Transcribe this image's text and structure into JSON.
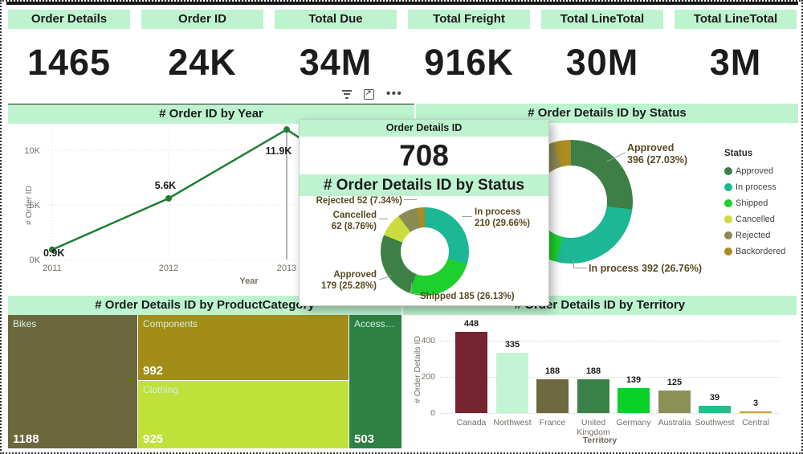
{
  "colors": {
    "mint": "#bdf3cf",
    "line": "#1e7e34",
    "axis_text": "#756e66",
    "status": {
      "Approved": "#3d7f46",
      "In process": "#1cb795",
      "Shipped": "#1ed02e",
      "Cancelled": "#cbdc3e",
      "Rejected": "#8a8a55",
      "Backordered": "#ab8c20"
    }
  },
  "kpi_cards": [
    {
      "label": "Order Details",
      "value": "1465"
    },
    {
      "label": "Order ID",
      "value": "24K"
    },
    {
      "label": "Total Due",
      "value": "34M"
    },
    {
      "label": "Total Freight",
      "value": "916K"
    },
    {
      "label": "Total LineTotal",
      "value": "30M"
    },
    {
      "label": "Total LineTotal",
      "value": "3M"
    }
  ],
  "visual_header_icons": [
    "filter",
    "focus-mode",
    "more-options"
  ],
  "line_chart": {
    "type": "line",
    "title": "# Order ID by Year",
    "xlabel": "Year",
    "ylabel": "# Order ID",
    "x_ticks": [
      "2011",
      "2012",
      "2013"
    ],
    "y_ticks": [
      {
        "label": "0K",
        "value": 0
      },
      {
        "label": "5K",
        "value": 5000
      },
      {
        "label": "10K",
        "value": 10000
      }
    ],
    "points": [
      {
        "x": "2011",
        "value": 900,
        "label": "0.9K"
      },
      {
        "x": "2012",
        "value": 5600,
        "label": "5.6K"
      },
      {
        "x": "2013",
        "value": 11900,
        "label": "11.9K"
      }
    ],
    "trailing_segment": {
      "note": "line continues toward 2014 behind tooltip card",
      "est_value": 5000
    }
  },
  "donut_main": {
    "type": "pie",
    "title": "# Order Details ID by Status",
    "legend_title": "Status",
    "legend": [
      "Approved",
      "In process",
      "Shipped",
      "Cancelled",
      "Rejected",
      "Backordered"
    ],
    "slices": [
      {
        "label": "Approved",
        "value": 396,
        "pct": "27.03%",
        "frac": 0.2703
      },
      {
        "label": "In process",
        "value": 392,
        "pct": "26.76%",
        "frac": 0.2676
      },
      {
        "label": "Shipped",
        "value": null,
        "pct": null,
        "frac": 0.255
      },
      {
        "label": "Cancelled",
        "value": null,
        "pct": null,
        "frac": 0.088
      },
      {
        "label": "Rejected",
        "value": null,
        "pct": null,
        "frac": 0.075
      },
      {
        "label": "Backordered",
        "value": null,
        "pct": null,
        "frac": 0.0441
      }
    ],
    "callout_approved": {
      "line1": "Approved",
      "line2": "396 (27.03%)"
    },
    "callout_inprocess": "In process 392 (26.76%)"
  },
  "popup": {
    "header": "Order Details ID",
    "value": "708",
    "section_title": "# Order Details ID by Status",
    "donut": {
      "type": "pie",
      "slices": [
        {
          "label": "In process",
          "value": 210,
          "pct": "29.66%",
          "frac": 0.2966
        },
        {
          "label": "Shipped",
          "value": 185,
          "pct": "26.13%",
          "frac": 0.2613
        },
        {
          "label": "Approved",
          "value": 179,
          "pct": "25.28%",
          "frac": 0.2528
        },
        {
          "label": "Cancelled",
          "value": 62,
          "pct": "8.76%",
          "frac": 0.0876
        },
        {
          "label": "Rejected",
          "value": 52,
          "pct": "7.34%",
          "frac": 0.0734
        },
        {
          "label": "Backordered",
          "value": null,
          "pct": null,
          "frac": 0.0283
        }
      ]
    },
    "callout_rejected": "Rejected 52 (7.34%)",
    "callout_cancelled": {
      "line1": "Cancelled",
      "line2": "62 (8.76%)"
    },
    "callout_inprocess": {
      "line1": "In process",
      "line2": "210 (29.66%)"
    },
    "callout_approved": {
      "line1": "Approved",
      "line2": "179 (25.28%)"
    },
    "callout_shipped": "Shipped 185 (26.13%)"
  },
  "treemap": {
    "type": "treemap",
    "title": "# Order Details ID by ProductCategory",
    "tiles": [
      {
        "label": "Bikes",
        "value": "1188",
        "color": "#6c683e"
      },
      {
        "label": "Components",
        "value": "992",
        "color": "#a28d18"
      },
      {
        "label": "Clothing",
        "value": "925",
        "color": "#bfe13a"
      },
      {
        "label": "Accessori…",
        "value": "503",
        "color": "#2f8044"
      }
    ]
  },
  "bar_chart": {
    "type": "bar",
    "title": "# Order Details ID by Territory",
    "xlabel": "Territory",
    "ylabel": "# Order Details ID",
    "y_ticks": [
      {
        "label": "0",
        "value": 0
      },
      {
        "label": "200",
        "value": 200
      },
      {
        "label": "400",
        "value": 400
      }
    ],
    "bars": [
      {
        "label": "Canada",
        "value": 448,
        "color": "#76242f"
      },
      {
        "label": "Northwest",
        "value": 335,
        "color": "#c2f5d3"
      },
      {
        "label": "France",
        "value": 188,
        "color": "#6d6940"
      },
      {
        "label": "United Kingdom",
        "value": 188,
        "color": "#3a8148"
      },
      {
        "label": "Germany",
        "value": 139,
        "color": "#0ad02a"
      },
      {
        "label": "Australia",
        "value": 125,
        "color": "#8b9156"
      },
      {
        "label": "Southwest",
        "value": 39,
        "color": "#27bd8d"
      },
      {
        "label": "Central",
        "value": 3,
        "color": "#c7a52a"
      }
    ]
  }
}
